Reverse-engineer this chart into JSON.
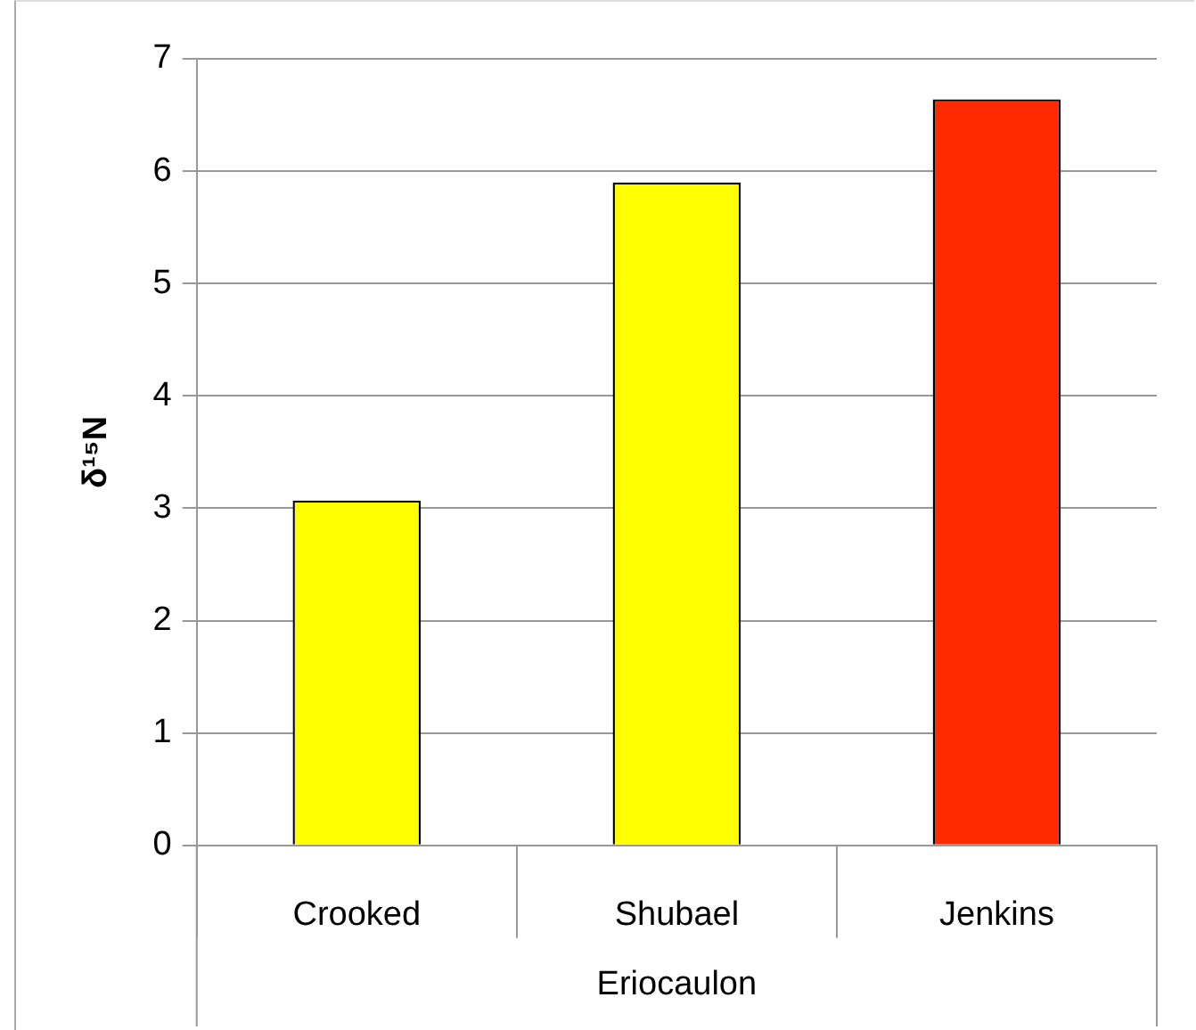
{
  "chart_data": {
    "type": "bar",
    "ylabel": "δ¹⁵N",
    "xlabel": "Eriocaulon",
    "categories": [
      "Crooked",
      "Shubael",
      "Jenkins"
    ],
    "values": [
      3.07,
      5.9,
      6.64
    ],
    "colors": [
      "#ffff00",
      "#ffff00",
      "#ff2a00"
    ],
    "ylim": [
      0,
      7
    ],
    "yticks": [
      0,
      1,
      2,
      3,
      4,
      5,
      6,
      7
    ],
    "grid": "y",
    "legend": false
  }
}
